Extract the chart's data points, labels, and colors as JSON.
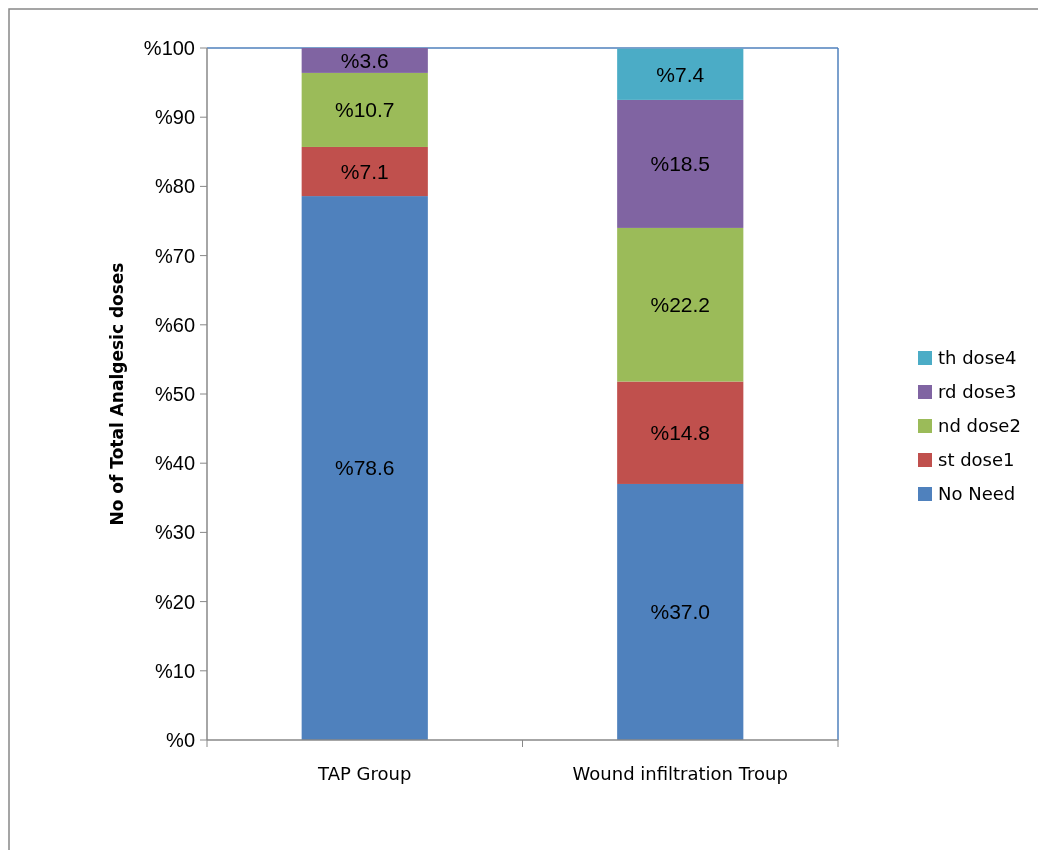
{
  "chart_data": {
    "type": "bar",
    "stacked": true,
    "ylabel": "No of Total Analgesic doses",
    "categories": [
      "TAP Group",
      "Wound infiltration Troup"
    ],
    "series": [
      {
        "name": "No Need",
        "color": "#4f81bd",
        "values": [
          78.6,
          37.0
        ],
        "value_labels": [
          "%78.6",
          "%37.0"
        ]
      },
      {
        "name": "st dose1",
        "color": "#c0504d",
        "values": [
          7.1,
          14.8
        ],
        "value_labels": [
          "%7.1",
          "%14.8"
        ]
      },
      {
        "name": "nd dose2",
        "color": "#9bbb59",
        "values": [
          10.7,
          22.2
        ],
        "value_labels": [
          "%10.7",
          "%22.2"
        ]
      },
      {
        "name": "rd dose3",
        "color": "#8064a2",
        "values": [
          3.6,
          18.5
        ],
        "value_labels": [
          "%3.6",
          "%18.5"
        ]
      },
      {
        "name": "th dose4",
        "color": "#4bacc6",
        "values": [
          null,
          7.4
        ],
        "value_labels": [
          null,
          "%7.4"
        ]
      }
    ],
    "ylim": [
      0,
      100
    ],
    "yticks": [
      {
        "value": 0,
        "label": "%0"
      },
      {
        "value": 10,
        "label": "%10"
      },
      {
        "value": 20,
        "label": "%20"
      },
      {
        "value": 30,
        "label": "%30"
      },
      {
        "value": 40,
        "label": "%40"
      },
      {
        "value": 50,
        "label": "%50"
      },
      {
        "value": 60,
        "label": "%60"
      },
      {
        "value": 70,
        "label": "%70"
      },
      {
        "value": 80,
        "label": "%80"
      },
      {
        "value": 90,
        "label": "%90"
      },
      {
        "value": 100,
        "label": "%100"
      }
    ],
    "grid": false,
    "legend": "right"
  }
}
